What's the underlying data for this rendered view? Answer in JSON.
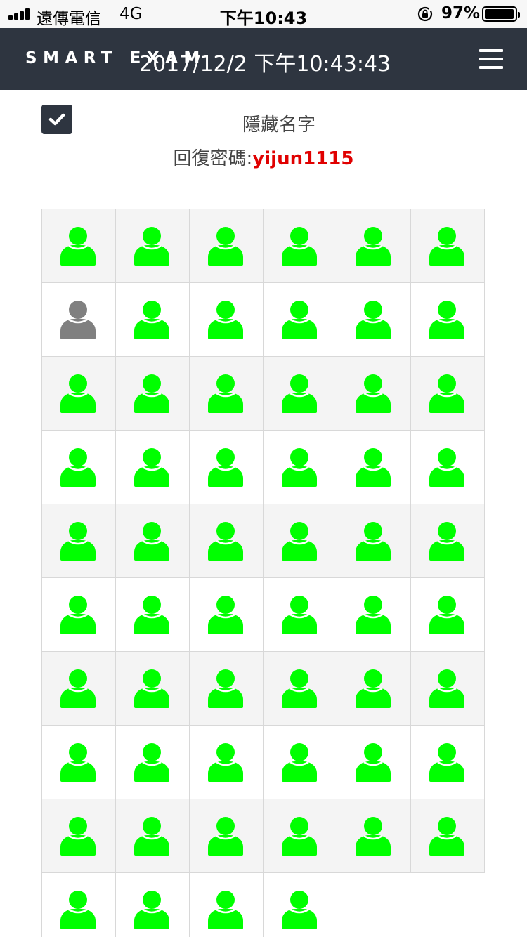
{
  "status_bar": {
    "carrier": "遠傳電信",
    "network": "4G",
    "time": "下午10:43",
    "battery": "97%",
    "battery_level": 0.97,
    "icons": [
      "signal-icon",
      "rotation-lock-icon",
      "battery-icon"
    ]
  },
  "navbar": {
    "brand": "SMART EXAM",
    "datetime": "2017/12/2 下午10:43:43",
    "menu_icon": "hamburger-icon"
  },
  "controls": {
    "hide_names_label": "隱藏名字",
    "hide_names_checked": true,
    "recovery_label": "回復密碼:",
    "recovery_password": "yijun1115"
  },
  "colors": {
    "navbar": "#2e3540",
    "present": "#00ff00",
    "absent": "#808080",
    "password": "#e00000",
    "row_alt": "#f4f4f4"
  },
  "seat_grid": {
    "columns": 6,
    "seats": [
      "online",
      "online",
      "online",
      "online",
      "online",
      "online",
      "offline",
      "online",
      "online",
      "online",
      "online",
      "online",
      "online",
      "online",
      "online",
      "online",
      "online",
      "online",
      "online",
      "online",
      "online",
      "online",
      "online",
      "online",
      "online",
      "online",
      "online",
      "online",
      "online",
      "online",
      "online",
      "online",
      "online",
      "online",
      "online",
      "online",
      "online",
      "online",
      "online",
      "online",
      "online",
      "online",
      "online",
      "online",
      "online",
      "online",
      "online",
      "online",
      "online",
      "online",
      "online",
      "online",
      "online",
      "online",
      "online",
      "online",
      "online",
      "online"
    ]
  }
}
